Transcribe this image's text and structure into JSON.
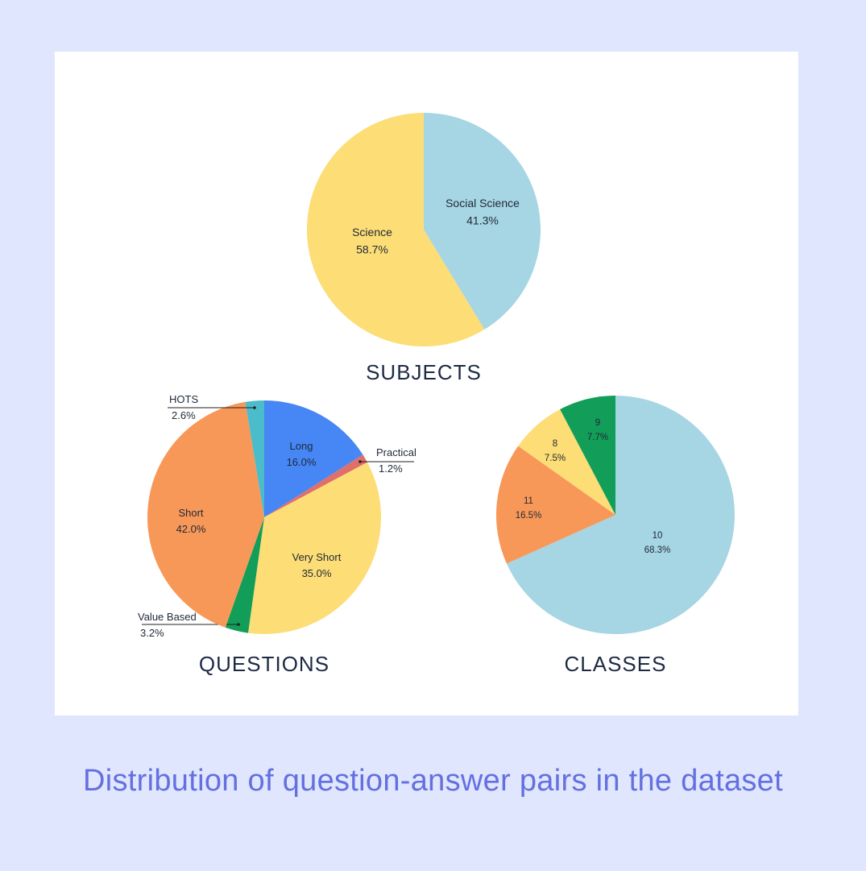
{
  "caption": "Distribution of question-answer pairs in the dataset",
  "chart_data": [
    {
      "type": "pie",
      "title": "SUBJECTS",
      "slices": [
        {
          "label": "Social Science",
          "value": 41.3,
          "display": "41.3%",
          "color": "#a6d5e3"
        },
        {
          "label": "Science",
          "value": 58.7,
          "display": "58.7%",
          "color": "#fddd76"
        }
      ]
    },
    {
      "type": "pie",
      "title": "QUESTIONS",
      "slices": [
        {
          "label": "Long",
          "value": 16.0,
          "display": "16.0%",
          "color": "#4686f5"
        },
        {
          "label": "Practical",
          "value": 1.2,
          "display": "1.2%",
          "color": "#e06f6a"
        },
        {
          "label": "Very Short",
          "value": 35.0,
          "display": "35.0%",
          "color": "#fddd76"
        },
        {
          "label": "Value Based",
          "value": 3.2,
          "display": "3.2%",
          "color": "#129e58"
        },
        {
          "label": "Short",
          "value": 42.0,
          "display": "42.0%",
          "color": "#f89858"
        },
        {
          "label": "HOTS",
          "value": 2.6,
          "display": "2.6%",
          "color": "#4bbcc9"
        }
      ]
    },
    {
      "type": "pie",
      "title": "CLASSES",
      "slices": [
        {
          "label": "10",
          "value": 68.3,
          "display": "68.3%",
          "color": "#a6d5e3"
        },
        {
          "label": "11",
          "value": 16.5,
          "display": "16.5%",
          "color": "#f89858"
        },
        {
          "label": "8",
          "value": 7.5,
          "display": "7.5%",
          "color": "#fddd76"
        },
        {
          "label": "9",
          "value": 7.7,
          "display": "7.7%",
          "color": "#129e58"
        }
      ]
    }
  ]
}
